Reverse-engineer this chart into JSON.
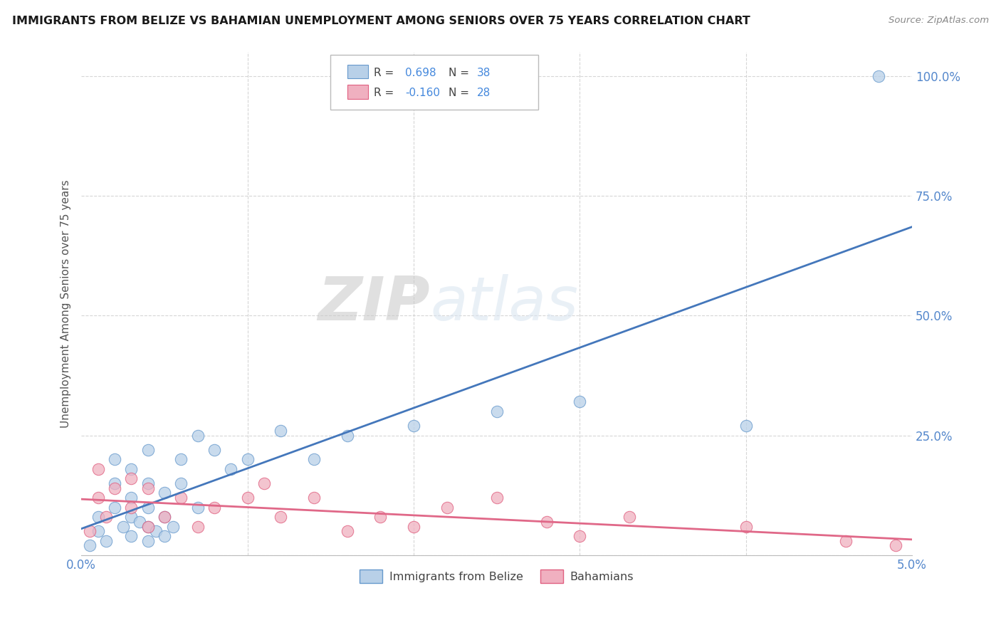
{
  "title": "IMMIGRANTS FROM BELIZE VS BAHAMIAN UNEMPLOYMENT AMONG SENIORS OVER 75 YEARS CORRELATION CHART",
  "source": "Source: ZipAtlas.com",
  "ylabel": "Unemployment Among Seniors over 75 years",
  "legend1_label": "Immigrants from Belize",
  "legend2_label": "Bahamians",
  "R1": 0.698,
  "N1": 38,
  "R2": -0.16,
  "N2": 28,
  "blue_fill": "#b8d0e8",
  "blue_edge": "#6699cc",
  "pink_fill": "#f0b0c0",
  "pink_edge": "#e06080",
  "blue_line": "#4477bb",
  "pink_line": "#e06888",
  "watermark_zip": "ZIP",
  "watermark_atlas": "atlas",
  "xlim": [
    0.0,
    0.05
  ],
  "ylim": [
    0.0,
    1.05
  ],
  "yticks": [
    0.0,
    0.25,
    0.5,
    0.75,
    1.0
  ],
  "ytick_labels": [
    "",
    "25.0%",
    "50.0%",
    "75.0%",
    "100.0%"
  ],
  "xtick_labels": [
    "0.0%",
    "",
    "",
    "",
    "",
    "5.0%"
  ],
  "background": "#ffffff",
  "grid_color": "#cccccc",
  "blue_scatter_x": [
    0.0005,
    0.001,
    0.001,
    0.0015,
    0.002,
    0.002,
    0.002,
    0.0025,
    0.003,
    0.003,
    0.003,
    0.003,
    0.0035,
    0.004,
    0.004,
    0.004,
    0.004,
    0.004,
    0.0045,
    0.005,
    0.005,
    0.005,
    0.0055,
    0.006,
    0.006,
    0.007,
    0.007,
    0.008,
    0.009,
    0.01,
    0.012,
    0.014,
    0.016,
    0.02,
    0.025,
    0.03,
    0.04,
    0.048
  ],
  "blue_scatter_y": [
    0.02,
    0.05,
    0.08,
    0.03,
    0.1,
    0.15,
    0.2,
    0.06,
    0.04,
    0.08,
    0.12,
    0.18,
    0.07,
    0.03,
    0.06,
    0.1,
    0.15,
    0.22,
    0.05,
    0.04,
    0.08,
    0.13,
    0.06,
    0.15,
    0.2,
    0.1,
    0.25,
    0.22,
    0.18,
    0.2,
    0.26,
    0.2,
    0.25,
    0.27,
    0.3,
    0.32,
    0.27,
    1.0
  ],
  "pink_scatter_x": [
    0.0005,
    0.001,
    0.001,
    0.0015,
    0.002,
    0.003,
    0.003,
    0.004,
    0.004,
    0.005,
    0.006,
    0.007,
    0.008,
    0.01,
    0.011,
    0.012,
    0.014,
    0.016,
    0.018,
    0.02,
    0.022,
    0.025,
    0.028,
    0.03,
    0.033,
    0.04,
    0.046,
    0.049
  ],
  "pink_scatter_y": [
    0.05,
    0.12,
    0.18,
    0.08,
    0.14,
    0.1,
    0.16,
    0.06,
    0.14,
    0.08,
    0.12,
    0.06,
    0.1,
    0.12,
    0.15,
    0.08,
    0.12,
    0.05,
    0.08,
    0.06,
    0.1,
    0.12,
    0.07,
    0.04,
    0.08,
    0.06,
    0.03,
    0.02
  ]
}
